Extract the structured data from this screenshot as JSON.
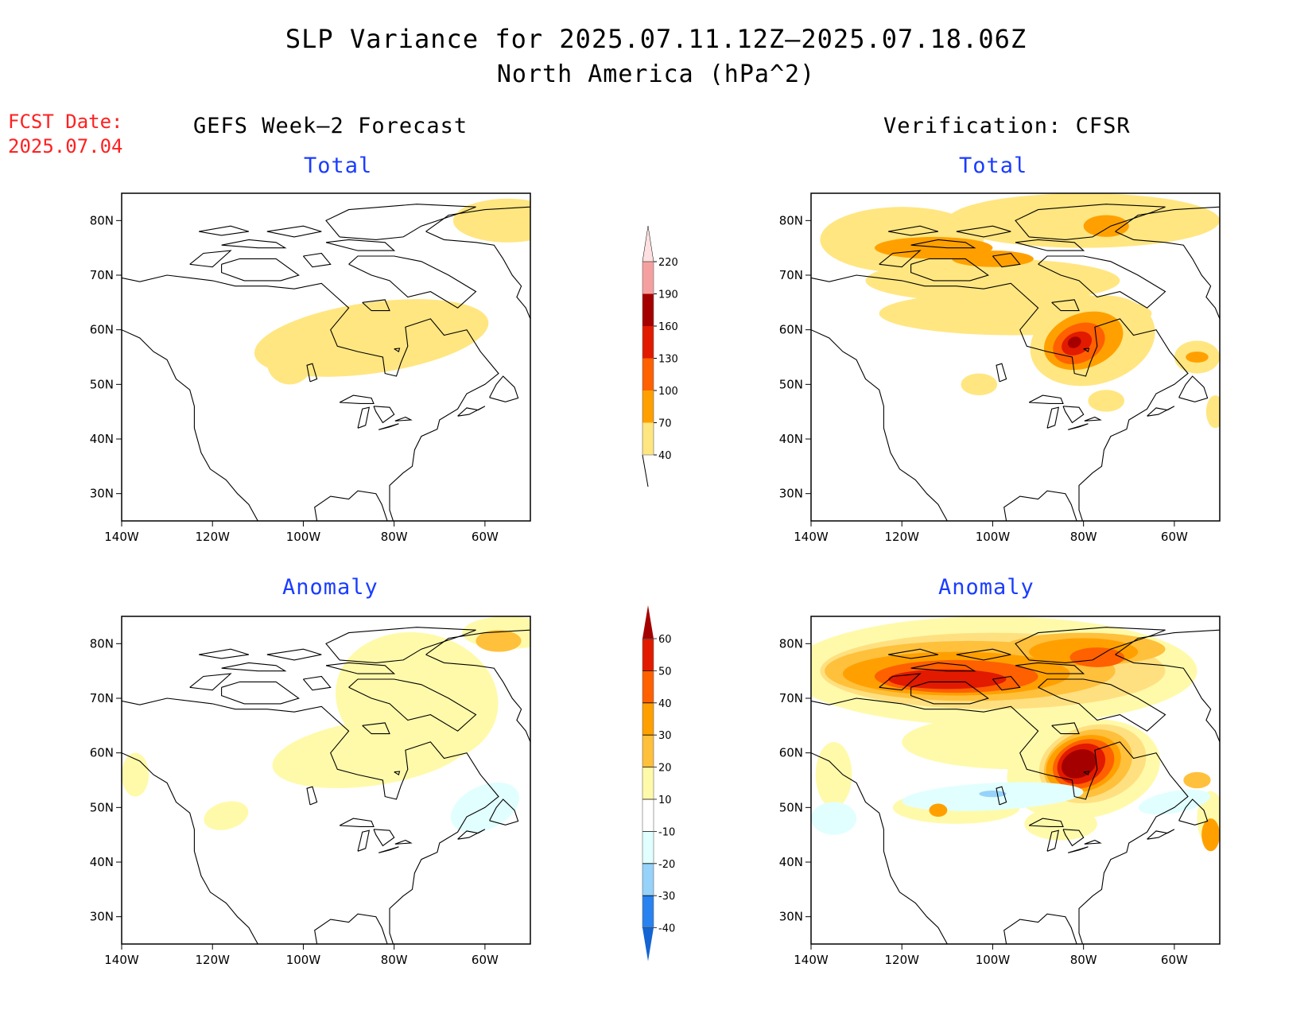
{
  "title_line1": "SLP Variance for 2025.07.11.12Z–2025.07.18.06Z",
  "title_line2": "North America (hPa^2)",
  "fcst_label": "FCST Date:",
  "fcst_date": "2025.07.04",
  "left_column": "GEFS Week–2 Forecast",
  "right_column": "Verification: CFSR",
  "panel_titles": {
    "top_left": "Total",
    "top_right": "Total",
    "bottom_left": "Anomaly",
    "bottom_right": "Anomaly"
  },
  "lat_ticks": [
    "80N",
    "70N",
    "60N",
    "50N",
    "40N",
    "30N"
  ],
  "lon_ticks": [
    "140W",
    "120W",
    "100W",
    "80W",
    "60W"
  ],
  "total_colorbar": {
    "levels": [
      "40",
      "70",
      "100",
      "130",
      "160",
      "190",
      "220"
    ],
    "colors": [
      "#ffe680",
      "#ffa000",
      "#ff6000",
      "#e11a00",
      "#a50000",
      "#f5a0a0",
      "#ffe0e0"
    ]
  },
  "anomaly_colorbar": {
    "levels": [
      "-40",
      "-30",
      "-20",
      "-10",
      "10",
      "20",
      "30",
      "40",
      "50",
      "60"
    ],
    "colors": [
      "#1464d2",
      "#2882f0",
      "#96d2fa",
      "#e1ffff",
      "#ffffff",
      "#fffaaa",
      "#ffc03c",
      "#ffa000",
      "#ff6000",
      "#e11a00",
      "#a50000"
    ]
  },
  "map_colors": {
    "c40": "#ffe680",
    "c70": "#ffa000",
    "c100": "#ff6000",
    "c130": "#e11a00",
    "c160": "#a50000",
    "a10": "#fffaaa",
    "a20": "#ffe080",
    "a30": "#ffc03c",
    "a40": "#ffa000",
    "a50": "#ff6000",
    "a60": "#e11a00",
    "a70": "#a50000",
    "n10": "#e1ffff",
    "n20": "#96d2fa"
  }
}
